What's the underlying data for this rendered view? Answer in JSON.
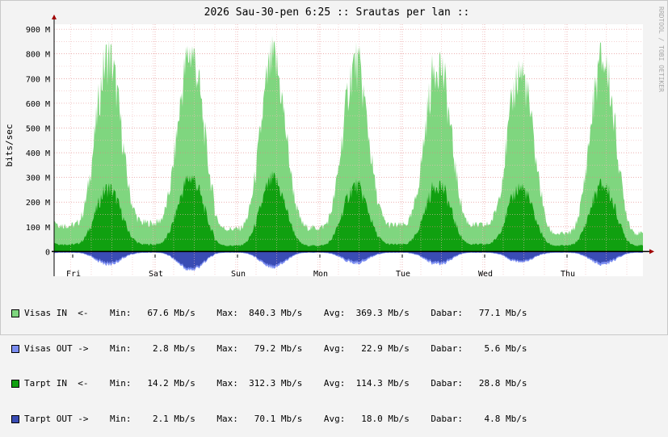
{
  "window": {
    "watermark": "RRDTOOL / TOBI OETIKER"
  },
  "colors": {
    "background": "#f3f3f3",
    "plot_bg": "#ffffff",
    "grid_major": "#e08080",
    "grid_minor": "#f0b8b8",
    "visas_in": "#7fd67f",
    "tarpt_in": "#10a010",
    "visas_out": "#7a8cf0",
    "tarpt_out": "#3a4cb4",
    "axis": "#000000",
    "arrow": "#a00000"
  },
  "chart_data": {
    "type": "area",
    "title": "2026 Sau-30-pen 6:25 :: Srautas per lan ::",
    "ylabel": "bits/sec",
    "xlabel": "",
    "ylim": [
      -100,
      920
    ],
    "y_unit": "M bits/sec",
    "y_ticks": [
      {
        "value": 900,
        "label": "900 M"
      },
      {
        "value": 800,
        "label": "800 M"
      },
      {
        "value": 700,
        "label": "700 M"
      },
      {
        "value": 600,
        "label": "600 M"
      },
      {
        "value": 500,
        "label": "500 M"
      },
      {
        "value": 400,
        "label": "400 M"
      },
      {
        "value": 300,
        "label": "300 M"
      },
      {
        "value": 200,
        "label": "200 M"
      },
      {
        "value": 100,
        "label": "100 M"
      },
      {
        "value": 0,
        "label": "0"
      }
    ],
    "x_day_labels": [
      "Fri",
      "Sat",
      "Sun",
      "Mon",
      "Tue",
      "Wed",
      "Thu"
    ],
    "grid": true,
    "legend_position": "bottom",
    "series": [
      {
        "name": "Visas IN  <-",
        "kind": "in",
        "color": "#7fd67f",
        "daily_peaks": [
          815,
          840,
          800,
          790,
          800,
          755,
          805
        ],
        "daily_troughs": [
          110,
          120,
          95,
          100,
          110,
          110,
          75
        ]
      },
      {
        "name": "Tarpt IN  <-",
        "kind": "in",
        "color": "#10a010",
        "daily_peaks": [
          265,
          312,
          300,
          275,
          285,
          270,
          280
        ],
        "daily_troughs": [
          30,
          30,
          25,
          25,
          30,
          30,
          25
        ]
      },
      {
        "name": "Visas OUT ->",
        "kind": "out",
        "color": "#7a8cf0",
        "daily_peaks": [
          -55,
          -79,
          -65,
          -50,
          -55,
          -45,
          -55
        ],
        "daily_troughs": [
          -5,
          -5,
          -5,
          -5,
          -5,
          -5,
          -5
        ]
      },
      {
        "name": "Tarpt OUT ->",
        "kind": "out",
        "color": "#3a4cb4",
        "daily_peaks": [
          -45,
          -70,
          -55,
          -40,
          -45,
          -38,
          -45
        ],
        "daily_troughs": [
          -3,
          -3,
          -3,
          -3,
          -3,
          -3,
          -3
        ]
      }
    ]
  },
  "legend": {
    "rows": [
      {
        "color": "#7fd67f",
        "text": "Visas IN  <-    Min:   67.6 Mb/s    Max:  840.3 Mb/s    Avg:  369.3 Mb/s    Dabar:   77.1 Mb/s"
      },
      {
        "color": "#7a8cf0",
        "text": "Visas OUT ->    Min:    2.8 Mb/s    Max:   79.2 Mb/s    Avg:   22.9 Mb/s    Dabar:    5.6 Mb/s"
      },
      {
        "color": "#10a010",
        "text": "Tarpt IN  <-    Min:   14.2 Mb/s    Max:  312.3 Mb/s    Avg:  114.3 Mb/s    Dabar:   28.8 Mb/s"
      },
      {
        "color": "#3a4cb4",
        "text": "Tarpt OUT ->    Min:    2.1 Mb/s    Max:   70.1 Mb/s    Avg:   18.0 Mb/s    Dabar:    4.8 Mb/s"
      }
    ]
  }
}
